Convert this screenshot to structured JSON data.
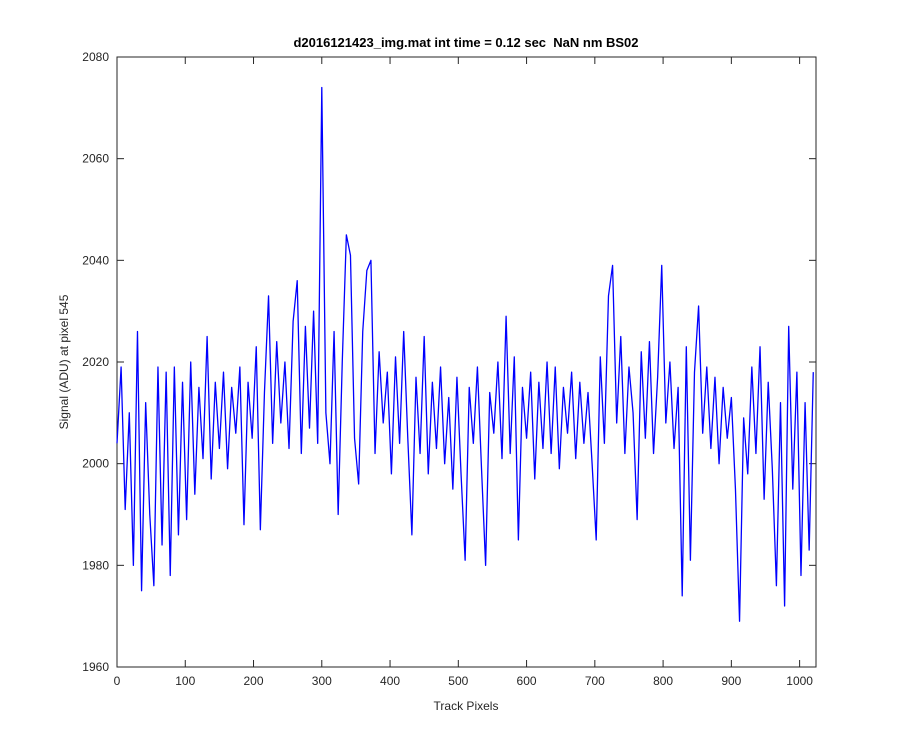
{
  "chart_data": {
    "type": "line",
    "title": "d2016121423_img.mat int time = 0.12 sec  NaN nm BS02",
    "x_label": "Track Pixels",
    "y_label": "Signal (ADU) at pixel 545",
    "xlim": [
      0,
      1024
    ],
    "ylim": [
      1960,
      2080
    ],
    "xticks": [
      0,
      100,
      200,
      300,
      400,
      500,
      600,
      700,
      800,
      900,
      1000
    ],
    "yticks": [
      1960,
      1980,
      2000,
      2020,
      2040,
      2060,
      2080
    ],
    "grid": false,
    "color": "#0000ff",
    "x": [
      0,
      6,
      12,
      18,
      24,
      30,
      36,
      42,
      48,
      54,
      60,
      66,
      72,
      78,
      84,
      90,
      96,
      102,
      108,
      114,
      120,
      126,
      132,
      138,
      144,
      150,
      156,
      162,
      168,
      174,
      180,
      186,
      192,
      198,
      204,
      210,
      216,
      222,
      228,
      234,
      240,
      246,
      252,
      258,
      264,
      270,
      276,
      282,
      288,
      294,
      300,
      306,
      312,
      318,
      324,
      330,
      336,
      342,
      348,
      354,
      360,
      366,
      372,
      378,
      384,
      390,
      396,
      402,
      408,
      414,
      420,
      426,
      432,
      438,
      444,
      450,
      456,
      462,
      468,
      474,
      480,
      486,
      492,
      498,
      504,
      510,
      516,
      522,
      528,
      534,
      540,
      546,
      552,
      558,
      564,
      570,
      576,
      582,
      588,
      594,
      600,
      606,
      612,
      618,
      624,
      630,
      636,
      642,
      648,
      654,
      660,
      666,
      672,
      678,
      684,
      690,
      696,
      702,
      708,
      714,
      720,
      726,
      732,
      738,
      744,
      750,
      756,
      762,
      768,
      774,
      780,
      786,
      792,
      798,
      804,
      810,
      816,
      822,
      828,
      834,
      840,
      846,
      852,
      858,
      864,
      870,
      876,
      882,
      888,
      894,
      900,
      906,
      912,
      918,
      924,
      930,
      936,
      942,
      948,
      954,
      960,
      966,
      972,
      978,
      984,
      990,
      996,
      1002,
      1008,
      1014,
      1020
    ],
    "values": [
      2004,
      2019,
      1991,
      2010,
      1980,
      2026,
      1975,
      2012,
      1990,
      1976,
      2019,
      1984,
      2018,
      1978,
      2019,
      1986,
      2016,
      1989,
      2020,
      1994,
      2015,
      2001,
      2025,
      1997,
      2016,
      2003,
      2018,
      1999,
      2015,
      2006,
      2019,
      1988,
      2016,
      2005,
      2023,
      1987,
      2014,
      2033,
      2004,
      2024,
      2008,
      2020,
      2003,
      2028,
      2036,
      2002,
      2027,
      2007,
      2030,
      2004,
      2074,
      2010,
      2000,
      2026,
      1990,
      2020,
      2045,
      2041,
      2005,
      1996,
      2026,
      2038,
      2040,
      2002,
      2022,
      2008,
      2018,
      1998,
      2021,
      2004,
      2026,
      2005,
      1986,
      2017,
      2002,
      2025,
      1998,
      2016,
      2003,
      2019,
      2000,
      2013,
      1995,
      2017,
      1998,
      1981,
      2015,
      2004,
      2019,
      1999,
      1980,
      2014,
      2006,
      2020,
      2001,
      2029,
      2002,
      2021,
      1985,
      2015,
      2005,
      2018,
      1997,
      2016,
      2003,
      2020,
      2002,
      2019,
      1999,
      2015,
      2006,
      2018,
      2001,
      2016,
      2004,
      2014,
      2000,
      1985,
      2021,
      2004,
      2033,
      2039,
      2008,
      2025,
      2002,
      2019,
      2010,
      1989,
      2022,
      2005,
      2024,
      2002,
      2017,
      2039,
      2008,
      2020,
      2003,
      2015,
      1974,
      2023,
      1981,
      2018,
      2031,
      2006,
      2019,
      2003,
      2017,
      2000,
      2015,
      2005,
      2013,
      1995,
      1969,
      2009,
      1998,
      2019,
      2002,
      2023,
      1993,
      2016,
      1999,
      1976,
      2012,
      1972,
      2027,
      1995,
      2018,
      1978,
      2012,
      1983,
      2018
    ]
  }
}
